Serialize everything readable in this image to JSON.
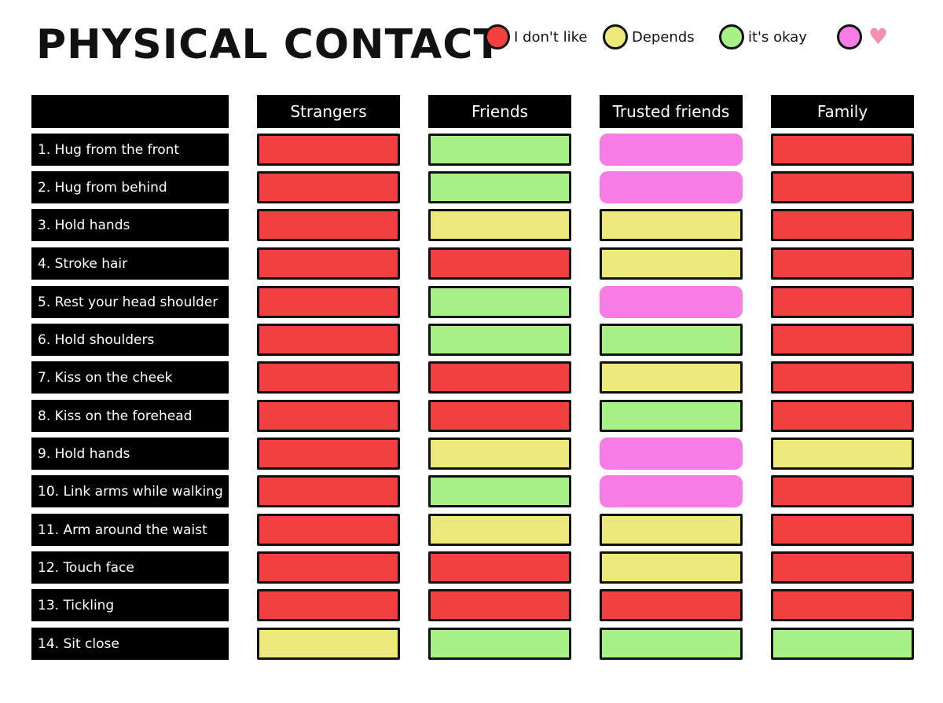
{
  "title": "PHYSICAL CONTACT",
  "legend": [
    {
      "key": "red",
      "label": "I don't like",
      "color": "#f04040"
    },
    {
      "key": "yellow",
      "label": "Depends",
      "color": "#ece87a"
    },
    {
      "key": "green",
      "label": "it's okay",
      "color": "#a7f187"
    },
    {
      "key": "pink",
      "label": "",
      "icon": "heart-icon",
      "color": "#f77ce6"
    }
  ],
  "colors": {
    "red": "#f04040",
    "yellow": "#ece87a",
    "green": "#a7f187",
    "pink": "#f77ce6"
  },
  "columns": [
    "Strangers",
    "Friends",
    "Trusted friends",
    "Family"
  ],
  "rows": [
    {
      "label": "1. Hug from the front",
      "values": [
        "red",
        "green",
        "pink",
        "red"
      ]
    },
    {
      "label": "2. Hug from behind",
      "values": [
        "red",
        "green",
        "pink",
        "red"
      ]
    },
    {
      "label": "3. Hold hands",
      "values": [
        "red",
        "yellow",
        "yellow",
        "red"
      ]
    },
    {
      "label": "4. Stroke hair",
      "values": [
        "red",
        "red",
        "yellow",
        "red"
      ]
    },
    {
      "label": "5. Rest your head shoulder",
      "values": [
        "red",
        "green",
        "pink",
        "red"
      ]
    },
    {
      "label": "6. Hold shoulders",
      "values": [
        "red",
        "green",
        "green",
        "red"
      ]
    },
    {
      "label": "7. Kiss on the cheek",
      "values": [
        "red",
        "red",
        "yellow",
        "red"
      ]
    },
    {
      "label": "8. Kiss  on the forehead",
      "values": [
        "red",
        "red",
        "green",
        "red"
      ]
    },
    {
      "label": "9. Hold hands",
      "values": [
        "red",
        "yellow",
        "pink",
        "yellow"
      ]
    },
    {
      "label": "10. Link arms while walking",
      "values": [
        "red",
        "green",
        "pink",
        "red"
      ]
    },
    {
      "label": "11. Arm around the waist",
      "values": [
        "red",
        "yellow",
        "yellow",
        "red"
      ]
    },
    {
      "label": "12. Touch face",
      "values": [
        "red",
        "red",
        "yellow",
        "red"
      ]
    },
    {
      "label": "13. Tickling",
      "values": [
        "red",
        "red",
        "red",
        "red"
      ]
    },
    {
      "label": "14. Sit close",
      "values": [
        "yellow",
        "green",
        "green",
        "green"
      ]
    }
  ]
}
